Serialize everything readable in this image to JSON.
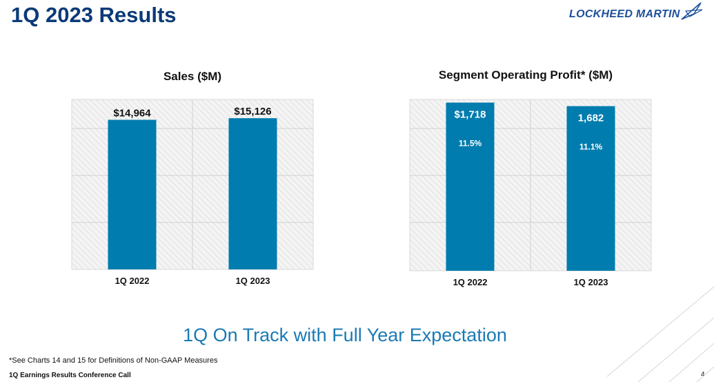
{
  "header": {
    "title": "1Q 2023 Results",
    "logo_text": "LOCKHEED MARTIN"
  },
  "chart_data": [
    {
      "type": "bar",
      "title": "Sales ($M)",
      "categories": [
        "1Q 2022",
        "1Q 2023"
      ],
      "values": [
        14964,
        15126
      ],
      "data_labels": [
        "$14,964",
        "$15,126"
      ],
      "ylim": [
        0,
        17000
      ],
      "grid": true,
      "color": "#007cae",
      "xlabel": "",
      "ylabel": ""
    },
    {
      "type": "bar",
      "title": "Segment Operating Profit* ($M)",
      "categories": [
        "1Q 2022",
        "1Q 2023"
      ],
      "values": [
        1718,
        1682
      ],
      "data_labels": [
        "$1,718",
        "1,682"
      ],
      "margin_labels": [
        "11.5%",
        "11.1%"
      ],
      "ylim": [
        0,
        1750
      ],
      "grid": true,
      "color": "#007cae",
      "xlabel": "",
      "ylabel": ""
    }
  ],
  "tagline": "1Q On Track with Full Year Expectation",
  "footnote": "*See Charts 14 and 15 for Definitions of Non-GAAP Measures",
  "footer": {
    "left": "1Q Earnings Results Conference Call",
    "page_number": "4"
  }
}
